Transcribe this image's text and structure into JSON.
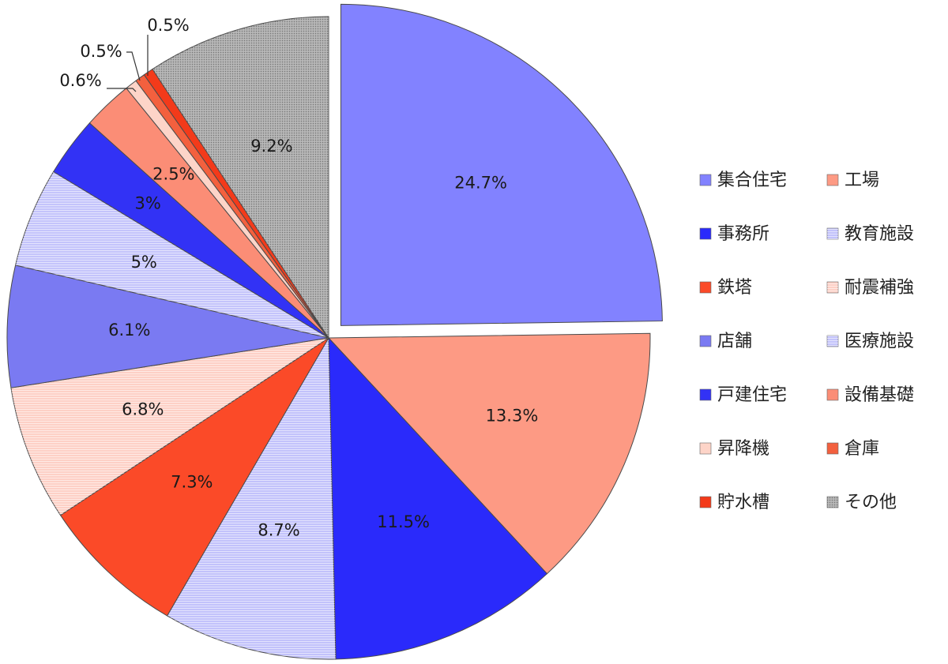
{
  "chart_data": {
    "type": "pie",
    "title": "",
    "legend_placement": "right",
    "slices": [
      {
        "name": "集合住宅",
        "value": 24.7,
        "label": "24.7%",
        "color": "#8282ff",
        "pattern": "none",
        "exploded": true
      },
      {
        "name": "工場",
        "value": 13.3,
        "label": "13.3%",
        "color": "#fd9a84",
        "pattern": "none"
      },
      {
        "name": "事務所",
        "value": 11.5,
        "label": "11.5%",
        "color": "#2a2afb",
        "pattern": "none"
      },
      {
        "name": "教育施設",
        "value": 8.7,
        "label": "8.7%",
        "color": "#c2c2fb",
        "pattern": "hlines"
      },
      {
        "name": "鉄塔",
        "value": 7.3,
        "label": "7.3%",
        "color": "#fb4a28",
        "pattern": "none"
      },
      {
        "name": "耐震補強",
        "value": 6.8,
        "label": "6.8%",
        "color": "#fdd0c6",
        "pattern": "hlines"
      },
      {
        "name": "店舗",
        "value": 6.1,
        "label": "6.1%",
        "color": "#7a7af2",
        "pattern": "none"
      },
      {
        "name": "医療施設",
        "value": 5.0,
        "label": "5%",
        "color": "#c4c4fb",
        "pattern": "hlines"
      },
      {
        "name": "戸建住宅",
        "value": 3.0,
        "label": "3%",
        "color": "#3232f5",
        "pattern": "none"
      },
      {
        "name": "設備基礎",
        "value": 2.5,
        "label": "2.5%",
        "color": "#fb8d76",
        "pattern": "none"
      },
      {
        "name": "昇降機",
        "value": 0.6,
        "label": "0.6%",
        "color": "#fdd4c8",
        "pattern": "none"
      },
      {
        "name": "倉庫",
        "value": 0.5,
        "label": "0.5%",
        "color": "#f3603e",
        "pattern": "none"
      },
      {
        "name": "貯水槽",
        "value": 0.5,
        "label": "0.5%",
        "color": "#f33a1a",
        "pattern": "none"
      },
      {
        "name": "その他",
        "value": 9.2,
        "label": "9.2%",
        "color": "#aaaaaa",
        "pattern": "dots"
      }
    ],
    "legend_order": [
      "集合住宅",
      "工場",
      "事務所",
      "教育施設",
      "鉄塔",
      "耐震補強",
      "店舗",
      "医療施設",
      "戸建住宅",
      "設備基礎",
      "昇降機",
      "倉庫",
      "貯水槽",
      "その他"
    ]
  }
}
